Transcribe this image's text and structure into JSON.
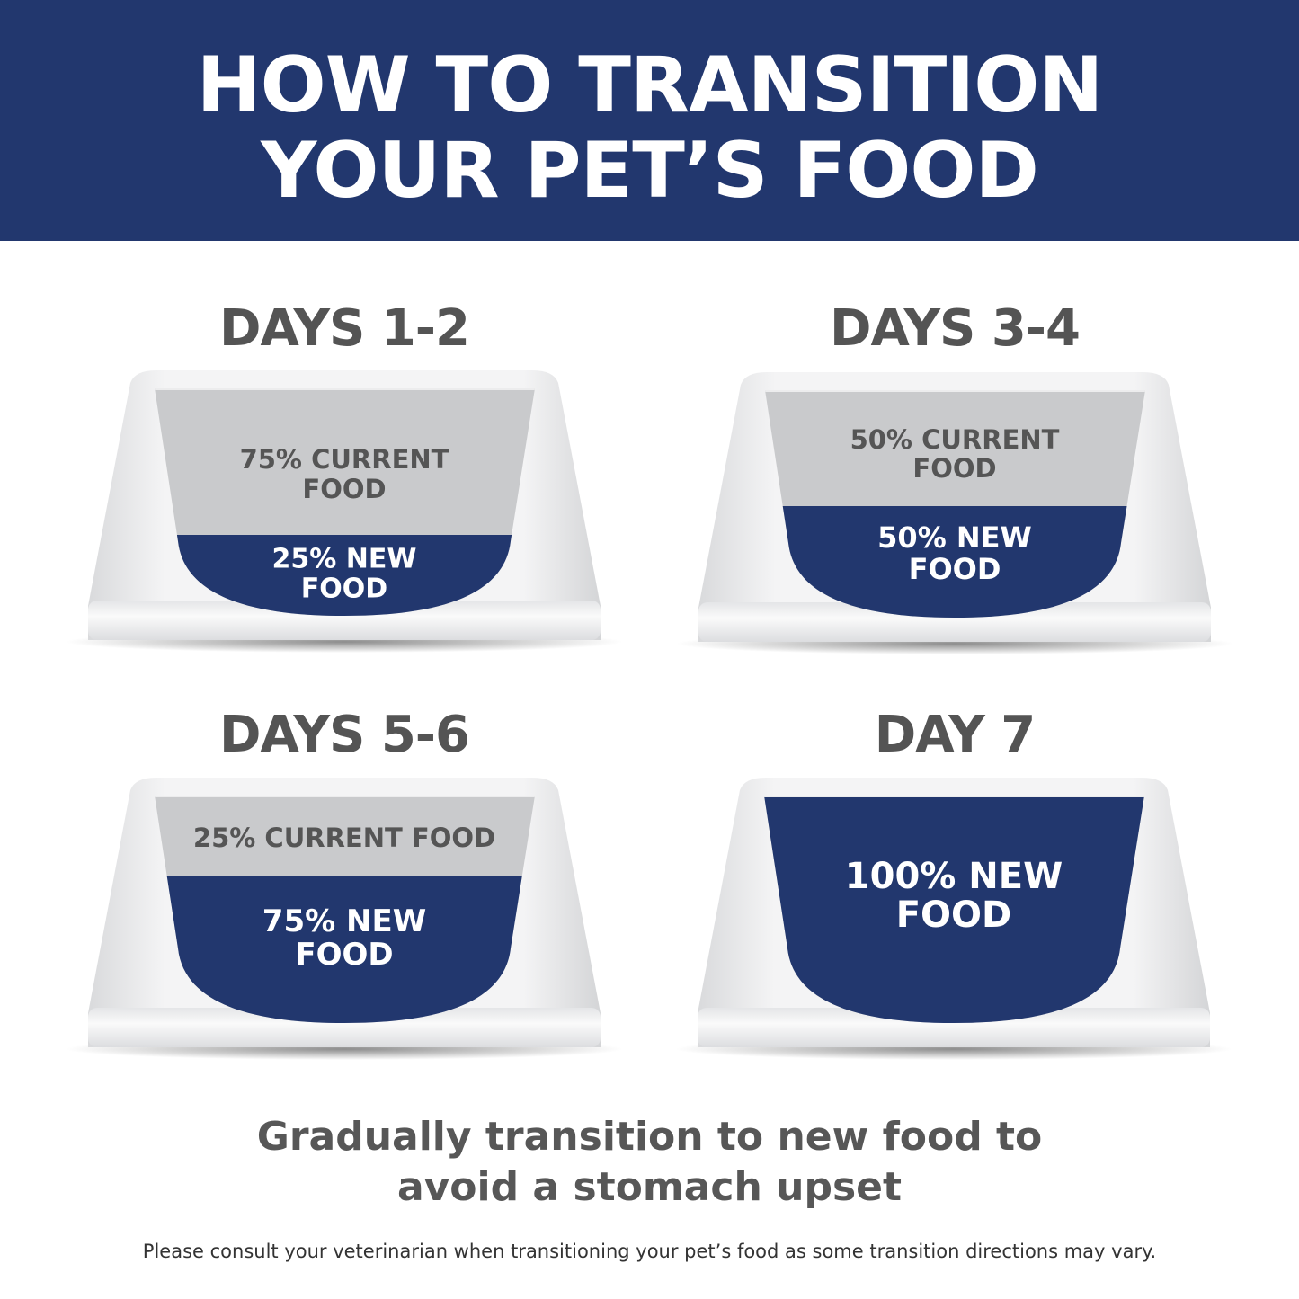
{
  "header": {
    "title_line1": "HOW TO TRANSITION",
    "title_line2": "YOUR PET’S FOOD",
    "background": "#22376e"
  },
  "stages": [
    {
      "label": "DAYS 1-2",
      "current_food_lines": [
        "75% CURRENT",
        "FOOD"
      ],
      "new_food_lines": [
        "25% NEW",
        "FOOD"
      ],
      "new_food_percent": 25
    },
    {
      "label": "DAYS 3-4",
      "current_food_lines": [
        "50% CURRENT",
        "FOOD"
      ],
      "new_food_lines": [
        "50% NEW",
        "FOOD"
      ],
      "new_food_percent": 50
    },
    {
      "label": "DAYS 5-6",
      "current_food_lines": [
        "25% CURRENT FOOD"
      ],
      "new_food_lines": [
        "75% NEW",
        "FOOD"
      ],
      "new_food_percent": 75
    },
    {
      "label": "DAY 7",
      "current_food_lines": [],
      "new_food_lines": [
        "100% NEW",
        "FOOD"
      ],
      "new_food_percent": 100
    }
  ],
  "colors": {
    "new_food": "#22376e",
    "current_food": "#c9cacc",
    "text_gray": "#555555"
  },
  "footer": {
    "tagline_line1": "Gradually transition to new food to",
    "tagline_line2": "avoid a stomach upset",
    "note": "Please consult your veterinarian when transitioning your pet’s food as some transition directions may vary."
  }
}
